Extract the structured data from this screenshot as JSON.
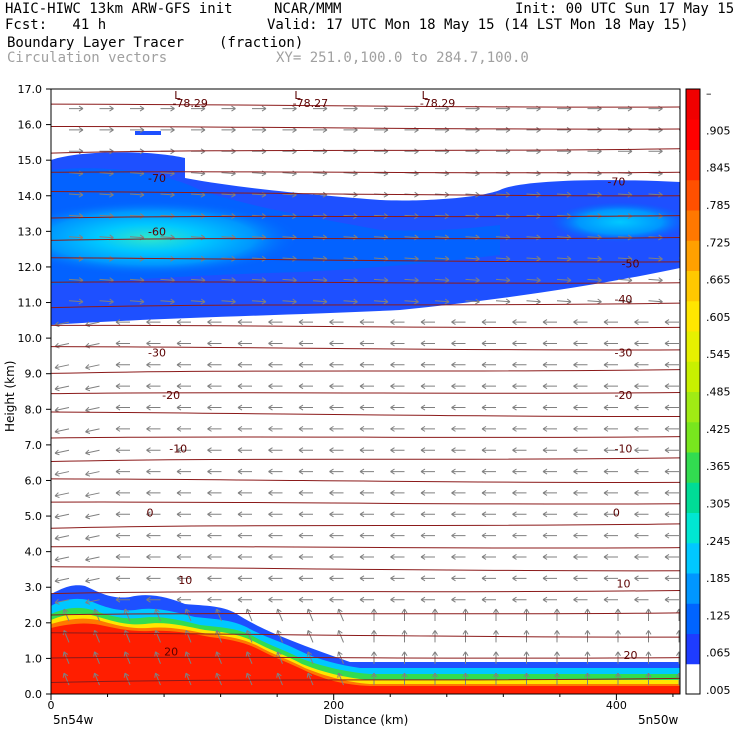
{
  "header": {
    "model": "HAIC-HIWC 13km ARW-GFS init",
    "org": "NCAR/MMM",
    "init": "Init: 00 UTC Sun 17 May 15",
    "fcst": "Fcst:   41 h",
    "valid": "Valid: 17 UTC Mon 18 May 15 (14 LST Mon 18 May 15)",
    "field": "Boundary Layer Tracer",
    "units": "(fraction)",
    "vectors": "Circulation vectors",
    "xy": "XY= 251.0,100.0 to 284.7,100.0"
  },
  "colors": {
    "bar": [
      "#ffffff",
      "#1e3cff",
      "#0064ff",
      "#0096ff",
      "#00c8ff",
      "#00e6d2",
      "#00dc96",
      "#32dc50",
      "#78e61e",
      "#a0eb14",
      "#c8f000",
      "#e6f000",
      "#ffe600",
      "#ffc800",
      "#ffa000",
      "#ff7800",
      "#ff5000",
      "#ff2800",
      "#ff0000",
      "#f00000"
    ],
    "contour": "#8b1a1a",
    "vector": "#808080"
  },
  "chart_data": {
    "type": "heatmap",
    "ylabel": "Height (km)",
    "xlabel": "Distance (km)",
    "xlim": [
      0,
      445
    ],
    "ylim": [
      0,
      17
    ],
    "y_ticks": [
      "0.0",
      "1.0",
      "2.0",
      "3.0",
      "4.0",
      "5.0",
      "6.0",
      "7.0",
      "8.0",
      "9.0",
      "10.0",
      "11.0",
      "12.0",
      "13.0",
      "14.0",
      "15.0",
      "16.0",
      "17.0"
    ],
    "x_ticks": [
      {
        "v": 0,
        "label": "0"
      },
      {
        "v": 200,
        "label": "200"
      },
      {
        "v": 400,
        "label": "400"
      }
    ],
    "endpoints": {
      "left": "5n54w",
      "right": "5n50w"
    },
    "colorbar_labels": [
      "–",
      ".905",
      ".845",
      ".785",
      ".725",
      ".665",
      ".605",
      ".545",
      ".485",
      ".425",
      ".365",
      ".305",
      ".245",
      ".185",
      ".125",
      ".065",
      ".005"
    ],
    "temperature_contours": [
      {
        "label": "20",
        "x": [
          85,
          410
        ],
        "y": [
          1.2,
          1.1
        ]
      },
      {
        "label": "10",
        "x": [
          95,
          405
        ],
        "y": [
          3.2,
          3.1
        ]
      },
      {
        "label": "0",
        "x": [
          70,
          400
        ],
        "y": [
          5.1,
          5.1
        ]
      },
      {
        "label": "-10",
        "x": [
          90,
          405
        ],
        "y": [
          6.9,
          6.9
        ]
      },
      {
        "label": "-20",
        "x": [
          85,
          405
        ],
        "y": [
          8.4,
          8.4
        ]
      },
      {
        "label": "-30",
        "x": [
          75,
          405
        ],
        "y": [
          9.6,
          9.6
        ]
      },
      {
        "label": "-40",
        "x": [
          405
        ],
        "y": [
          11.1
        ]
      },
      {
        "label": "-50",
        "x": [
          410
        ],
        "y": [
          12.1
        ]
      },
      {
        "label": "-60",
        "x": [
          75
        ],
        "y": [
          13.0
        ]
      },
      {
        "label": "-70",
        "x": [
          75,
          400
        ],
        "y": [
          14.5,
          14.4
        ]
      }
    ],
    "tropopause_minima": [
      {
        "x": 90,
        "label": "-78.29"
      },
      {
        "x": 175,
        "label": "-78.27"
      },
      {
        "x": 265,
        "label": "-78.29"
      }
    ]
  }
}
